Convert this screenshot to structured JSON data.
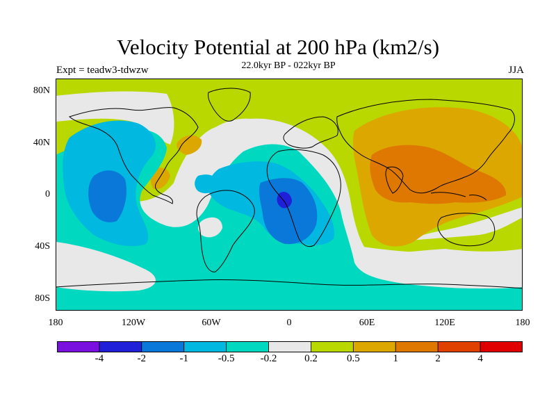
{
  "figure": {
    "title": "Velocity Potential at 200 hPa (km2/s)",
    "subtitle": "22.0kyr BP - 022kyr BP",
    "left_label": "Expt = teadw3-tdwzw",
    "right_label": "JJA"
  },
  "axes": {
    "lat_labels": [
      "80N",
      "40N",
      "0",
      "40S",
      "80S"
    ],
    "lon_labels": [
      "180",
      "120W",
      "60W",
      "0",
      "60E",
      "120E",
      "180"
    ]
  },
  "colorbar": {
    "colors": [
      "#7a10e0",
      "#2020d8",
      "#0a78d8",
      "#00b8e0",
      "#00d8c0",
      "#e8e8e8",
      "#b8d800",
      "#dca800",
      "#de7800",
      "#e04000",
      "#e00000"
    ],
    "labels": [
      "-4",
      "-2",
      "-1",
      "-0.5",
      "-0.2",
      "0.2",
      "0.5",
      "1",
      "2",
      "4"
    ]
  },
  "map_colors": {
    "ocean_neutral": "#e8e8e8",
    "green": "#b8d800",
    "yellow_orange": "#dca800",
    "orange": "#de7800",
    "cyan_green": "#00d8c0",
    "light_blue": "#00b8e0",
    "blue": "#0a78d8",
    "dark_blue": "#2020d8",
    "coast": "#000000"
  }
}
